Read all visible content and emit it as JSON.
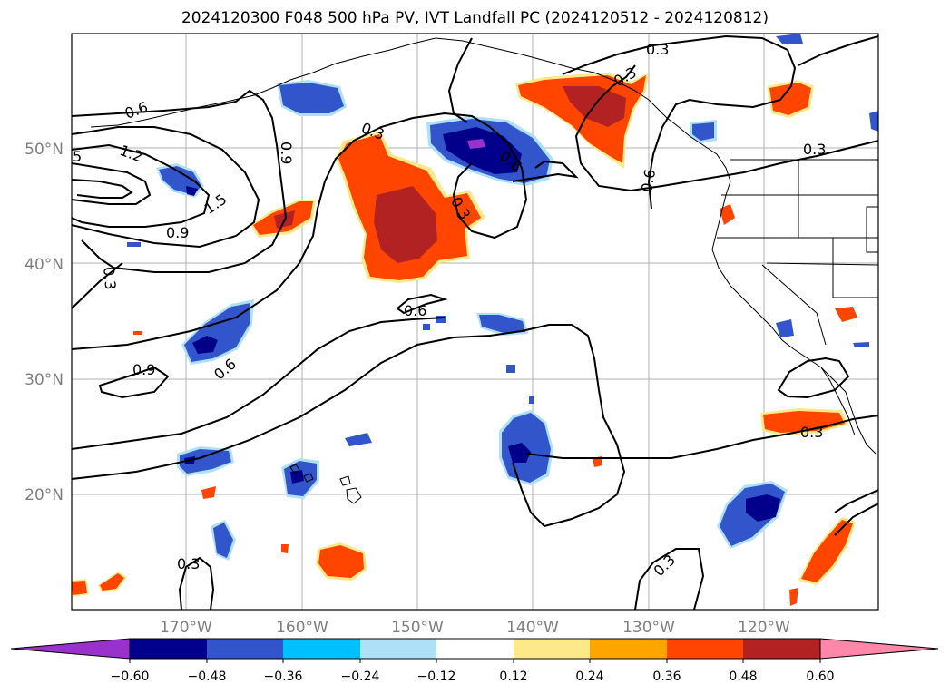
{
  "title": "2024120300 F048 500 hPa PV, IVT Landfall PC (2024120512 - 2024120812)",
  "axes": {
    "lon_labels": [
      "170°W",
      "160°W",
      "150°W",
      "140°W",
      "130°W",
      "120°W"
    ],
    "lat_labels": [
      "50°N",
      "40°N",
      "30°N",
      "20°N"
    ],
    "label_color": "#808080"
  },
  "contour_labels": [
    "0.6",
    "5",
    "1.2",
    "1.5",
    "0.9",
    "0.3",
    "0.9",
    "0.6",
    "0.9",
    "0.3",
    "0.3",
    "0.6",
    "0.3",
    "0.6",
    "0.3",
    "0.3",
    "0.6",
    "0.3",
    "0.3",
    "0.3"
  ],
  "colorbar": {
    "ticks": [
      "−0.60",
      "−0.48",
      "−0.36",
      "−0.24",
      "−0.12",
      "0.12",
      "0.24",
      "0.36",
      "0.48",
      "0.60"
    ],
    "colors": [
      "#9932cc",
      "#00008b",
      "#3355cc",
      "#00bfff",
      "#aee0f8",
      "#ffffff",
      "#fde98a",
      "#ffa500",
      "#ff4500",
      "#b22222",
      "#ff88aa"
    ]
  },
  "shading_colors": {
    "neg_light": "#aee0f8",
    "neg_mid": "#00bfff",
    "neg_blue": "#3355cc",
    "neg_dark": "#00008b",
    "neg_purple": "#9932cc",
    "pos_yellow": "#fde98a",
    "pos_orange": "#ff4500",
    "pos_red": "#b22222"
  }
}
